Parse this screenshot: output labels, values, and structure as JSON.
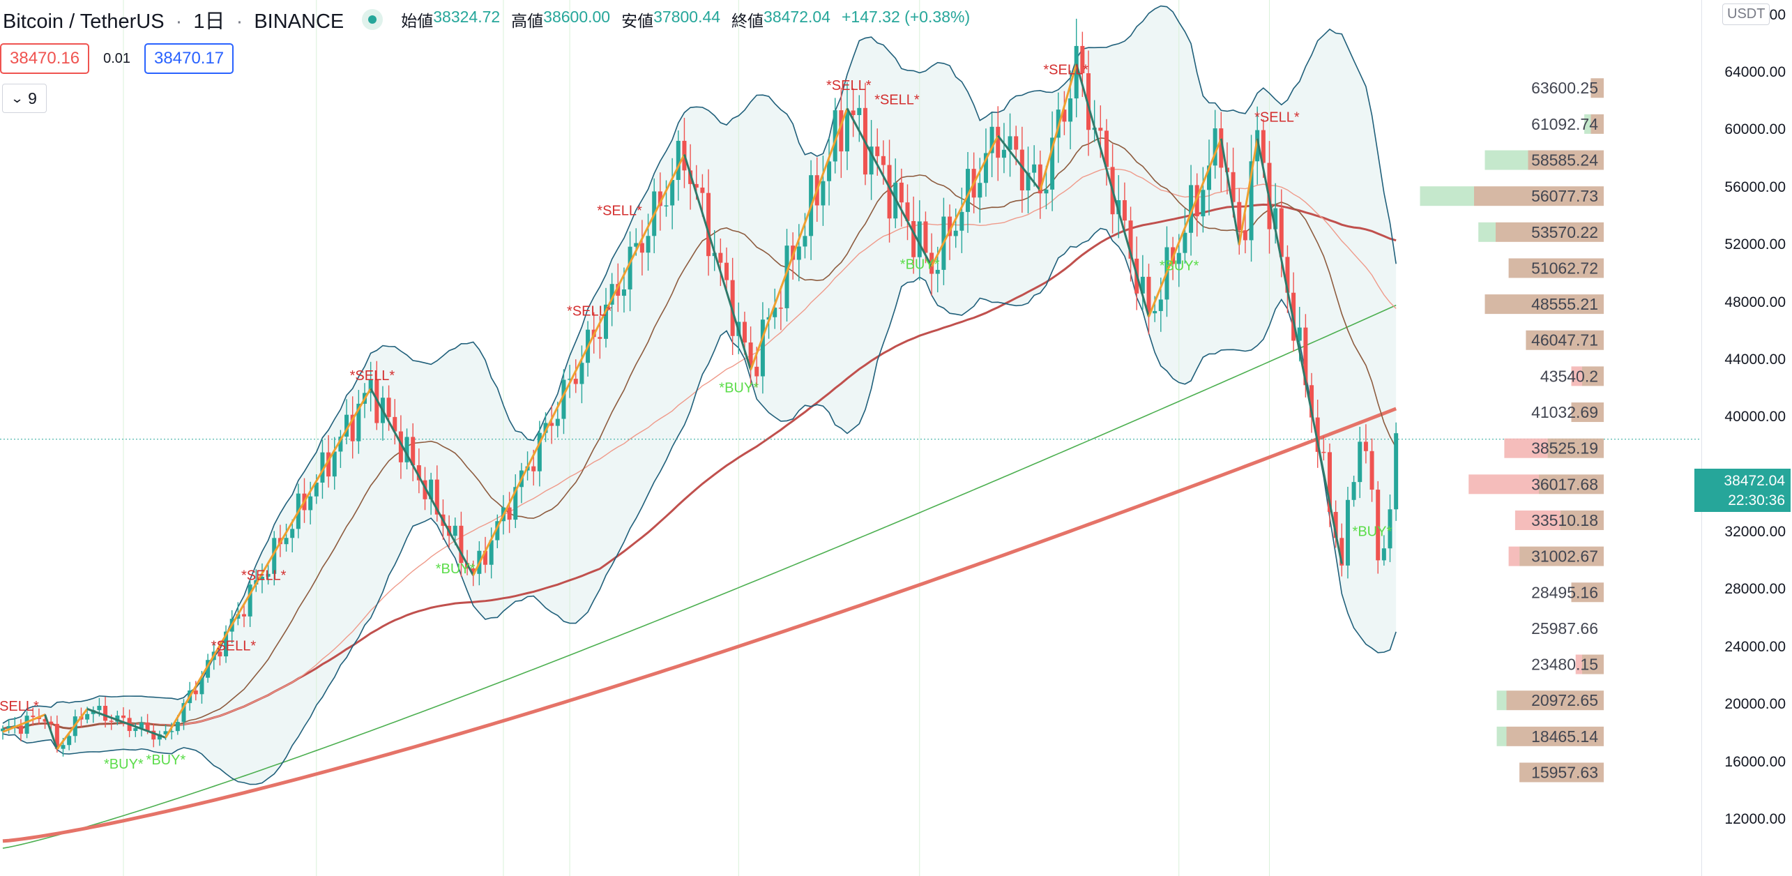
{
  "header": {
    "symbol": "Bitcoin / TetherUS",
    "interval": "1日",
    "exchange": "BINANCE",
    "separator": "·",
    "open_label": "始値",
    "open_value": "38324.72",
    "high_label": "高値",
    "high_value": "38600.00",
    "low_label": "安値",
    "low_value": "37800.44",
    "close_label": "終値",
    "close_value": "38472.04",
    "change_value": "+147.32 (+0.38%)"
  },
  "trade": {
    "bid": "38470.16",
    "spread": "0.01",
    "ask": "38470.17"
  },
  "indicators_toggle": {
    "count": "9"
  },
  "price_axis": {
    "currency": "USDT",
    "ticks": [
      "68000.00",
      "64000.00",
      "60000.00",
      "56000.00",
      "52000.00",
      "48000.00",
      "44000.00",
      "40000.00",
      "36000.00",
      "32000.00",
      "28000.00",
      "24000.00",
      "20000.00",
      "16000.00",
      "12000.00"
    ],
    "last_price": "38472.04",
    "countdown": "22:30:36"
  },
  "volume_profile": {
    "levels": [
      "63600.25",
      "61092.74",
      "58585.24",
      "56077.73",
      "53570.22",
      "51062.72",
      "48555.21",
      "46047.71",
      "43540.2",
      "41032.69",
      "38525.19",
      "36017.68",
      "33510.18",
      "31002.67",
      "28495.16",
      "25987.66",
      "23480.15",
      "20972.65",
      "18465.14",
      "15957.63"
    ],
    "up_volume": [
      0,
      6,
      40,
      50,
      16,
      0,
      0,
      0,
      0,
      0,
      0,
      0,
      0,
      0,
      0,
      0,
      0,
      9,
      9,
      0
    ],
    "down_volume": [
      12,
      12,
      70,
      120,
      100,
      88,
      110,
      72,
      20,
      30,
      52,
      60,
      40,
      78,
      30,
      0,
      20,
      90,
      90,
      78
    ],
    "red_volume": [
      0,
      0,
      0,
      0,
      0,
      0,
      0,
      0,
      10,
      0,
      40,
      65,
      42,
      10,
      0,
      0,
      6,
      0,
      0,
      0
    ]
  },
  "signals": {
    "sell_label": "*SELL*",
    "buy_label": "*BUY*",
    "sells": [
      [
        2,
        19000
      ],
      [
        38,
        23200
      ],
      [
        43,
        28100
      ],
      [
        61,
        42000
      ],
      [
        97,
        46500
      ],
      [
        102,
        53500
      ],
      [
        140,
        62200
      ],
      [
        148,
        61200
      ],
      [
        176,
        63300
      ],
      [
        211,
        60000
      ]
    ],
    "buys": [
      [
        20,
        17000
      ],
      [
        27,
        17300
      ],
      [
        75,
        30600
      ],
      [
        122,
        43200
      ],
      [
        152,
        51800
      ],
      [
        195,
        51700
      ],
      [
        227,
        33200
      ]
    ]
  },
  "chart_data": {
    "type": "candlestick",
    "symbol": "Bitcoin / TetherUS",
    "interval": "1日",
    "ylim": [
      12000,
      68000
    ],
    "last_close": 38472.04,
    "price_levels": [
      63600.25,
      61092.74,
      58585.24,
      56077.73,
      53570.22,
      51062.72,
      48555.21,
      46047.71,
      43540.2,
      41032.69,
      38525.19,
      36017.68,
      33510.18,
      31002.67,
      28495.16,
      25987.66,
      23480.15,
      20972.65,
      18465.14,
      15957.63
    ],
    "zigzag_pivots": [
      [
        0,
        18100
      ],
      [
        7,
        19300
      ],
      [
        9,
        16900
      ],
      [
        14,
        19700
      ],
      [
        27,
        17700
      ],
      [
        61,
        42000
      ],
      [
        78,
        29000
      ],
      [
        113,
        58300
      ],
      [
        124,
        43300
      ],
      [
        140,
        61500
      ],
      [
        154,
        50500
      ],
      [
        165,
        59600
      ],
      [
        172,
        55800
      ],
      [
        178,
        64600
      ],
      [
        190,
        47000
      ],
      [
        202,
        59400
      ],
      [
        205,
        52000
      ],
      [
        208,
        59400
      ],
      [
        222,
        29800
      ]
    ]
  }
}
